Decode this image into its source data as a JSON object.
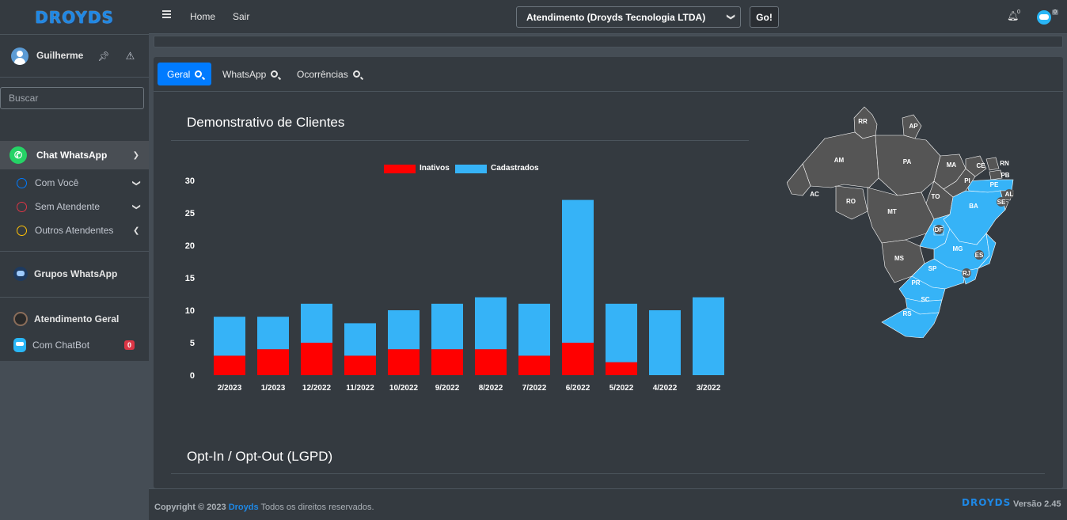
{
  "brand": {
    "logo_text": "DROYDS"
  },
  "user": {
    "name": "Guilherme",
    "pin_icon": "pin-icon",
    "alert_icon": "warning-icon"
  },
  "sidebar": {
    "search_placeholder": "Buscar",
    "chat_whatsapp": "Chat WhatsApp",
    "sub_items": [
      {
        "label": "Com Você",
        "ring_color": "#007bff",
        "chevron": "down"
      },
      {
        "label": "Sem Atendente",
        "ring_color": "#dc3545",
        "chevron": "down"
      },
      {
        "label": "Outros Atendentes",
        "ring_color": "#ffc107",
        "chevron": "left"
      }
    ],
    "grupos_whatsapp": "Grupos WhatsApp",
    "atendimento_geral": "Atendimento Geral",
    "com_chatbot": "Com ChatBot",
    "chatbot_badge": "0"
  },
  "header": {
    "home": "Home",
    "sair": "Sair",
    "company_select": "Atendimento (Droyds Tecnologia LTDA)",
    "go": "Go!",
    "bell_count": "0",
    "avatar_count": "0"
  },
  "tabs": [
    {
      "label": "Geral",
      "active": true
    },
    {
      "label": "WhatsApp",
      "active": false
    },
    {
      "label": "Ocorrências",
      "active": false
    }
  ],
  "sections": {
    "clients_title": "Demonstrativo de Clientes",
    "optin_title": "Opt-In / Opt-Out (LGPD)"
  },
  "chart_data": {
    "type": "bar",
    "stacked": true,
    "categories": [
      "2/2023",
      "1/2023",
      "12/2022",
      "11/2022",
      "10/2022",
      "9/2022",
      "8/2022",
      "7/2022",
      "6/2022",
      "5/2022",
      "4/2022",
      "3/2022"
    ],
    "series": [
      {
        "name": "Inativos",
        "color": "#ff0000",
        "values": [
          3,
          4,
          5,
          3,
          4,
          4,
          4,
          3,
          5,
          2,
          0,
          0
        ]
      },
      {
        "name": "Cadastrados",
        "color": "#36b3f7",
        "values": [
          6,
          5,
          6,
          5,
          6,
          7,
          8,
          8,
          22,
          9,
          10,
          12
        ]
      }
    ],
    "ylim": [
      0,
      30
    ],
    "yticks": [
      0,
      5,
      10,
      15,
      20,
      25,
      30
    ],
    "legend": "top-center",
    "grid": false
  },
  "map": {
    "highlight_color": "#36b3f7",
    "base_color": "#555555",
    "states": [
      {
        "code": "RR",
        "highlighted": false
      },
      {
        "code": "AP",
        "highlighted": false
      },
      {
        "code": "AM",
        "highlighted": false
      },
      {
        "code": "PA",
        "highlighted": false
      },
      {
        "code": "MA",
        "highlighted": false
      },
      {
        "code": "CE",
        "highlighted": false
      },
      {
        "code": "RN",
        "highlighted": false
      },
      {
        "code": "PB",
        "highlighted": false
      },
      {
        "code": "PE",
        "highlighted": true
      },
      {
        "code": "AL",
        "highlighted": false
      },
      {
        "code": "SE",
        "highlighted": false
      },
      {
        "code": "PI",
        "highlighted": false
      },
      {
        "code": "AC",
        "highlighted": false
      },
      {
        "code": "RO",
        "highlighted": false
      },
      {
        "code": "TO",
        "highlighted": false
      },
      {
        "code": "BA",
        "highlighted": true
      },
      {
        "code": "MT",
        "highlighted": false
      },
      {
        "code": "GO",
        "highlighted": true
      },
      {
        "code": "DF",
        "highlighted": true
      },
      {
        "code": "MG",
        "highlighted": true
      },
      {
        "code": "ES",
        "highlighted": true
      },
      {
        "code": "MS",
        "highlighted": false
      },
      {
        "code": "SP",
        "highlighted": true
      },
      {
        "code": "RJ",
        "highlighted": true
      },
      {
        "code": "PR",
        "highlighted": true
      },
      {
        "code": "SC",
        "highlighted": true
      },
      {
        "code": "RS",
        "highlighted": true
      }
    ]
  },
  "footer": {
    "copyright_prefix": "Copyright © 2023",
    "brand_link": "Droyds",
    "copyright_suffix": "Todos os direitos reservados.",
    "logo_text": "DROYDS",
    "version": "Versão 2.45"
  }
}
